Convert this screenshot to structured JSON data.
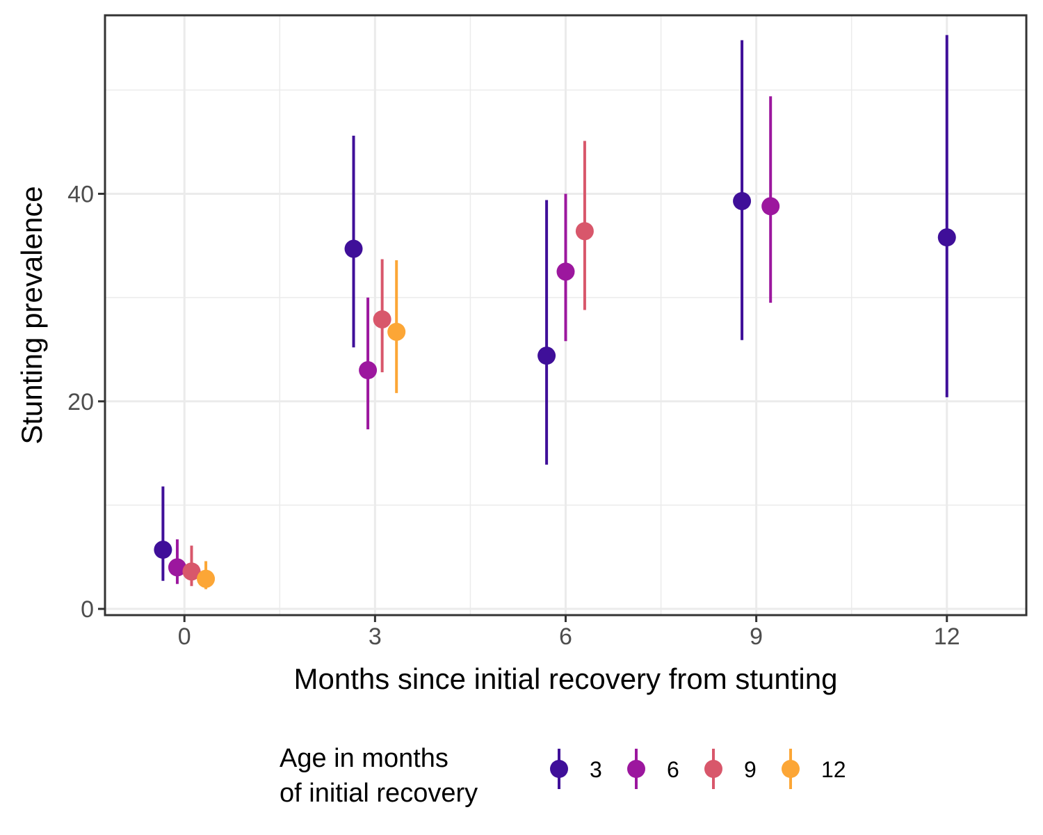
{
  "chart_data": {
    "type": "scatter",
    "title": "",
    "xlabel": "Months since initial recovery from stunting",
    "ylabel": "Stunting prevalence",
    "xlim": [
      -1.25,
      13.25
    ],
    "ylim": [
      -0.6,
      57.2
    ],
    "x_ticks": [
      0,
      3,
      6,
      9,
      12
    ],
    "y_ticks": [
      0,
      20,
      40
    ],
    "grid": true,
    "legend": {
      "title_lines": [
        "Age in months",
        "of initial recovery"
      ],
      "placement": "bottom",
      "entries": [
        "3",
        "6",
        "9",
        "12"
      ]
    },
    "series": [
      {
        "name": "3",
        "color": "#3f0f99",
        "points": [
          {
            "x": 0,
            "y": 5.7,
            "lo": 2.7,
            "hi": 11.8
          },
          {
            "x": 3,
            "y": 34.7,
            "lo": 25.2,
            "hi": 45.6
          },
          {
            "x": 6,
            "y": 24.4,
            "lo": 13.9,
            "hi": 39.4
          },
          {
            "x": 9,
            "y": 39.3,
            "lo": 25.9,
            "hi": 54.8
          },
          {
            "x": 12,
            "y": 35.8,
            "lo": 20.4,
            "hi": 55.3
          }
        ]
      },
      {
        "name": "6",
        "color": "#9c179e",
        "points": [
          {
            "x": 0,
            "y": 4.0,
            "lo": 2.4,
            "hi": 6.7
          },
          {
            "x": 3,
            "y": 23.0,
            "lo": 17.3,
            "hi": 30.0
          },
          {
            "x": 6,
            "y": 32.5,
            "lo": 25.8,
            "hi": 40.0
          },
          {
            "x": 9,
            "y": 38.8,
            "lo": 29.5,
            "hi": 49.4
          }
        ]
      },
      {
        "name": "9",
        "color": "#d8576b",
        "points": [
          {
            "x": 0,
            "y": 3.6,
            "lo": 2.2,
            "hi": 6.1
          },
          {
            "x": 3,
            "y": 27.9,
            "lo": 22.8,
            "hi": 33.7
          },
          {
            "x": 6,
            "y": 36.4,
            "lo": 28.8,
            "hi": 45.1
          }
        ]
      },
      {
        "name": "12",
        "color": "#fca636",
        "points": [
          {
            "x": 0,
            "y": 2.9,
            "lo": 1.9,
            "hi": 4.6
          },
          {
            "x": 3,
            "y": 26.7,
            "lo": 20.8,
            "hi": 33.6
          }
        ]
      }
    ]
  }
}
